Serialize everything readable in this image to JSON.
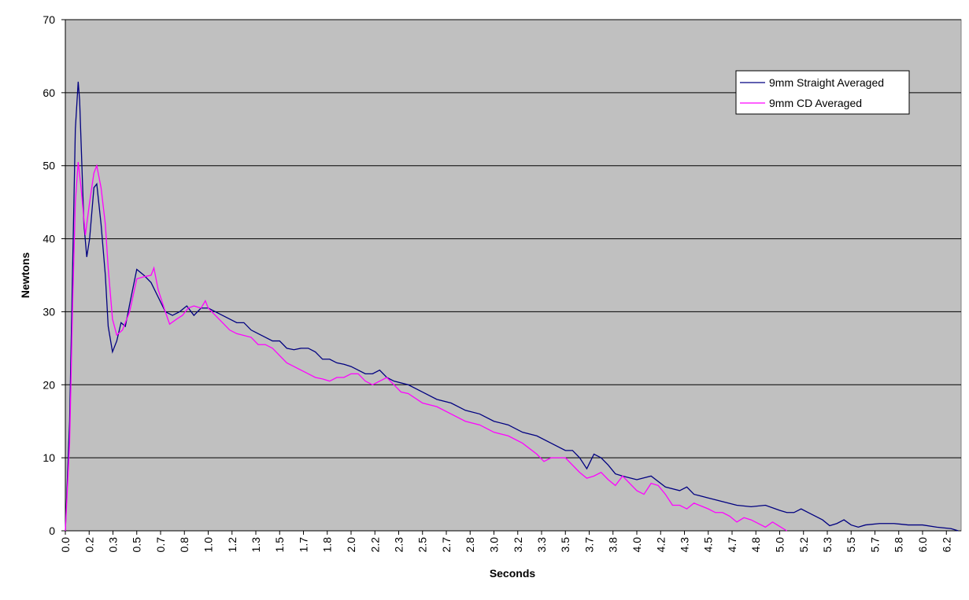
{
  "chart_data": {
    "type": "line",
    "x_label": "Seconds",
    "y_label": "Newtons",
    "xlim": [
      0,
      6.27
    ],
    "ylim": [
      0,
      70
    ],
    "yticks": [
      0,
      10,
      20,
      30,
      40,
      50,
      60,
      70
    ],
    "xticks": [
      {
        "value": 0,
        "label": "0.0"
      },
      {
        "value": 0.1667,
        "label": "0.2"
      },
      {
        "value": 0.3333,
        "label": "0.3"
      },
      {
        "value": 0.5,
        "label": "0.5"
      },
      {
        "value": 0.6667,
        "label": "0.7"
      },
      {
        "value": 0.8333,
        "label": "0.8"
      },
      {
        "value": 1,
        "label": "1.0"
      },
      {
        "value": 1.1667,
        "label": "1.2"
      },
      {
        "value": 1.3333,
        "label": "1.3"
      },
      {
        "value": 1.5,
        "label": "1.5"
      },
      {
        "value": 1.6667,
        "label": "1.7"
      },
      {
        "value": 1.8333,
        "label": "1.8"
      },
      {
        "value": 2,
        "label": "2.0"
      },
      {
        "value": 2.1667,
        "label": "2.2"
      },
      {
        "value": 2.3333,
        "label": "2.3"
      },
      {
        "value": 2.5,
        "label": "2.5"
      },
      {
        "value": 2.6667,
        "label": "2.7"
      },
      {
        "value": 2.8333,
        "label": "2.8"
      },
      {
        "value": 3,
        "label": "3.0"
      },
      {
        "value": 3.1667,
        "label": "3.2"
      },
      {
        "value": 3.3333,
        "label": "3.3"
      },
      {
        "value": 3.5,
        "label": "3.5"
      },
      {
        "value": 3.6667,
        "label": "3.7"
      },
      {
        "value": 3.8333,
        "label": "3.8"
      },
      {
        "value": 4,
        "label": "4.0"
      },
      {
        "value": 4.1667,
        "label": "4.2"
      },
      {
        "value": 4.3333,
        "label": "4.3"
      },
      {
        "value": 4.5,
        "label": "4.5"
      },
      {
        "value": 4.6667,
        "label": "4.7"
      },
      {
        "value": 4.8333,
        "label": "4.8"
      },
      {
        "value": 5,
        "label": "5.0"
      },
      {
        "value": 5.1667,
        "label": "5.2"
      },
      {
        "value": 5.3333,
        "label": "5.3"
      },
      {
        "value": 5.5,
        "label": "5.5"
      },
      {
        "value": 5.6667,
        "label": "5.7"
      },
      {
        "value": 5.8333,
        "label": "5.8"
      },
      {
        "value": 6,
        "label": "6.0"
      },
      {
        "value": 6.1667,
        "label": "6.2"
      }
    ],
    "grid": true,
    "background": "#c0c0c0",
    "legend": "upper-right",
    "series": [
      {
        "name": "9mm Straight Averaged",
        "color": "#000080",
        "x": [
          0,
          0.03,
          0.05,
          0.07,
          0.09,
          0.1,
          0.13,
          0.15,
          0.17,
          0.2,
          0.22,
          0.25,
          0.28,
          0.3,
          0.33,
          0.36,
          0.39,
          0.42,
          0.45,
          0.5,
          0.55,
          0.6,
          0.65,
          0.7,
          0.75,
          0.8,
          0.85,
          0.9,
          0.95,
          1.0,
          1.05,
          1.1,
          1.15,
          1.2,
          1.25,
          1.3,
          1.35,
          1.4,
          1.45,
          1.5,
          1.55,
          1.6,
          1.65,
          1.7,
          1.75,
          1.8,
          1.85,
          1.9,
          1.95,
          2.0,
          2.05,
          2.1,
          2.15,
          2.2,
          2.25,
          2.3,
          2.4,
          2.5,
          2.6,
          2.7,
          2.8,
          2.9,
          3.0,
          3.1,
          3.2,
          3.3,
          3.4,
          3.5,
          3.55,
          3.6,
          3.65,
          3.7,
          3.75,
          3.8,
          3.85,
          3.9,
          4.0,
          4.1,
          4.2,
          4.3,
          4.35,
          4.4,
          4.5,
          4.6,
          4.7,
          4.8,
          4.9,
          5.0,
          5.05,
          5.1,
          5.15,
          5.2,
          5.3,
          5.35,
          5.4,
          5.45,
          5.5,
          5.55,
          5.6,
          5.7,
          5.8,
          5.9,
          6.0,
          6.1,
          6.2,
          6.25
        ],
        "values": [
          0,
          15,
          35,
          55,
          61.5,
          59,
          42,
          37.5,
          40,
          47,
          47.5,
          42,
          35,
          28,
          24.5,
          26,
          28.5,
          28,
          31,
          35.8,
          35,
          34,
          32,
          30,
          29.5,
          30,
          30.8,
          29.5,
          30.5,
          30.5,
          30,
          29.5,
          29,
          28.5,
          28.5,
          27.5,
          27,
          26.5,
          26,
          26,
          25,
          24.8,
          25,
          25,
          24.5,
          23.5,
          23.5,
          23,
          22.8,
          22.5,
          22,
          21.5,
          21.5,
          22,
          21,
          20.5,
          20,
          19,
          18,
          17.5,
          16.5,
          16,
          15,
          14.5,
          13.5,
          13,
          12,
          11,
          11,
          10,
          8.5,
          10.5,
          10,
          9,
          7.8,
          7.5,
          7,
          7.5,
          6,
          5.5,
          6,
          5,
          4.5,
          4,
          3.5,
          3.3,
          3.5,
          2.8,
          2.5,
          2.5,
          3,
          2.5,
          1.5,
          0.7,
          1,
          1.5,
          0.8,
          0.5,
          0.8,
          1,
          1,
          0.8,
          0.8,
          0.5,
          0.3,
          0
        ]
      },
      {
        "name": "9mm CD Averaged",
        "color": "#ff00ff",
        "x": [
          0,
          0.03,
          0.05,
          0.07,
          0.09,
          0.11,
          0.14,
          0.17,
          0.2,
          0.22,
          0.25,
          0.28,
          0.3,
          0.33,
          0.36,
          0.4,
          0.45,
          0.5,
          0.55,
          0.6,
          0.62,
          0.65,
          0.7,
          0.73,
          0.78,
          0.82,
          0.86,
          0.9,
          0.95,
          0.98,
          1.0,
          1.05,
          1.1,
          1.15,
          1.2,
          1.3,
          1.35,
          1.4,
          1.45,
          1.5,
          1.55,
          1.6,
          1.65,
          1.7,
          1.75,
          1.8,
          1.85,
          1.9,
          1.95,
          2.0,
          2.05,
          2.1,
          2.15,
          2.2,
          2.25,
          2.3,
          2.35,
          2.4,
          2.5,
          2.6,
          2.7,
          2.8,
          2.9,
          3.0,
          3.1,
          3.2,
          3.3,
          3.35,
          3.4,
          3.5,
          3.6,
          3.65,
          3.7,
          3.75,
          3.8,
          3.85,
          3.9,
          4.0,
          4.05,
          4.1,
          4.15,
          4.2,
          4.25,
          4.3,
          4.35,
          4.4,
          4.5,
          4.55,
          4.6,
          4.65,
          4.7,
          4.75,
          4.8,
          4.85,
          4.9,
          4.95,
          5.0,
          5.05
        ],
        "values": [
          0,
          12,
          30,
          45,
          50.5,
          47,
          40.5,
          45,
          49,
          50,
          47,
          42,
          36,
          29,
          26.8,
          27.5,
          30,
          34.5,
          34.8,
          35,
          36,
          33,
          30,
          28.3,
          29,
          29.5,
          30.5,
          30.8,
          30.5,
          31.5,
          30.5,
          29.5,
          28.5,
          27.5,
          27,
          26.5,
          25.5,
          25.5,
          25,
          24,
          23,
          22.5,
          22,
          21.5,
          21,
          20.8,
          20.5,
          21,
          21,
          21.5,
          21.5,
          20.5,
          20,
          20.5,
          21,
          20,
          19,
          18.8,
          17.5,
          17,
          16,
          15,
          14.5,
          13.5,
          13,
          12,
          10.5,
          9.5,
          10,
          10,
          8,
          7.2,
          7.5,
          8,
          7,
          6.2,
          7.5,
          5.5,
          5,
          6.5,
          6.2,
          5,
          3.5,
          3.5,
          3,
          3.8,
          3,
          2.5,
          2.5,
          2,
          1.2,
          1.8,
          1.5,
          1,
          0.5,
          1.2,
          0.6,
          0
        ]
      }
    ]
  }
}
